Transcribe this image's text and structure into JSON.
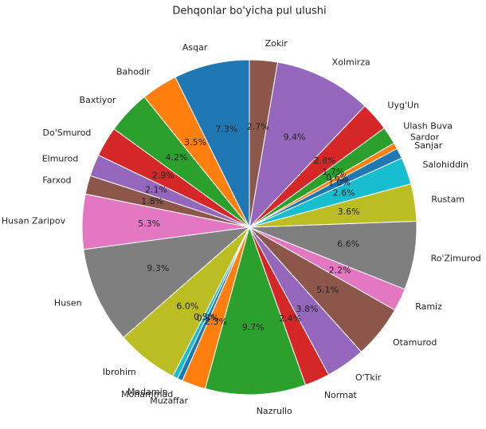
{
  "chart_data": {
    "type": "pie",
    "title": "Dehqonlar bo'yicha pul ulushi",
    "categories": [
      "Asqar",
      "Bahodir",
      "Baxtiyor",
      "Do'Smurod",
      "Elmurod",
      "Farxod",
      "Husan Zaripov",
      "Husen",
      "Ibrohim",
      "Madamin",
      "Mohammad",
      "Muzaffar",
      "Nazrullo",
      "Normat",
      "O'Tkir",
      "Otamurod",
      "Ramiz",
      "Ro'Zimurod",
      "Rustam",
      "Salohiddin",
      "Sanjar",
      "Sardor",
      "Ulash Buva",
      "Uyg'Un",
      "Xolmirza",
      "Zokir"
    ],
    "values": [
      7.3,
      3.5,
      4.2,
      2.9,
      2.1,
      1.8,
      5.3,
      9.3,
      6.0,
      0.5,
      0.5,
      2.3,
      9.7,
      2.4,
      3.8,
      5.1,
      2.2,
      6.6,
      3.6,
      2.6,
      1.0,
      0.6,
      1.7,
      2.8,
      9.4,
      2.7
    ],
    "value_labels": [
      "7.3%",
      "3.5%",
      "4.2%",
      "2.9%",
      "2.1%",
      "1.8%",
      "5.3%",
      "9.3%",
      "6.0%",
      "0.5%",
      "0.5%",
      "2.3%",
      "9.7%",
      "2.4%",
      "3.8%",
      "5.1%",
      "2.2%",
      "6.6%",
      "3.6%",
      "2.6%",
      "1.0%",
      "0.6%",
      "1.7%",
      "2.8%",
      "9.4%",
      "2.7%"
    ],
    "colors": [
      "#1f77b4",
      "#ff7f0e",
      "#2ca02c",
      "#d62728",
      "#9467bd",
      "#8c564b",
      "#e377c2",
      "#7f7f7f",
      "#bcbd22",
      "#17becf",
      "#1f77b4",
      "#ff7f0e",
      "#2ca02c",
      "#d62728",
      "#9467bd",
      "#8c564b",
      "#e377c2",
      "#7f7f7f",
      "#bcbd22",
      "#17becf",
      "#1f77b4",
      "#ff7f0e",
      "#2ca02c",
      "#d62728",
      "#9467bd",
      "#8c564b"
    ]
  }
}
